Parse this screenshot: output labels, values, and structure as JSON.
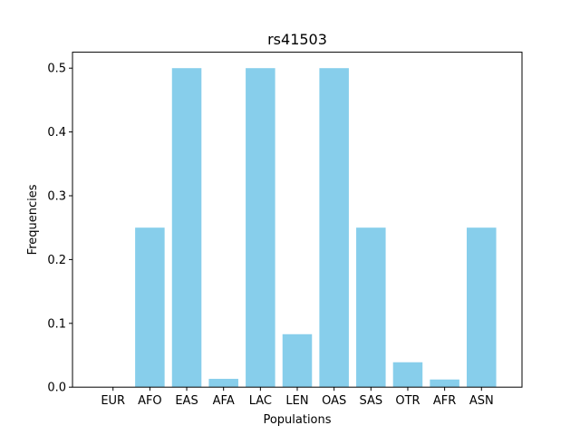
{
  "chart_data": {
    "type": "bar",
    "title": "rs41503",
    "xlabel": "Populations",
    "ylabel": "Frequencies",
    "categories": [
      "EUR",
      "AFO",
      "EAS",
      "AFA",
      "LAC",
      "LEN",
      "OAS",
      "SAS",
      "OTR",
      "AFR",
      "ASN"
    ],
    "values": [
      0.0,
      0.25,
      0.5,
      0.013,
      0.5,
      0.083,
      0.5,
      0.25,
      0.039,
      0.012,
      0.25
    ],
    "ylim": [
      0,
      0.525
    ],
    "yticks": [
      "0.0",
      "0.1",
      "0.2",
      "0.3",
      "0.4",
      "0.5"
    ],
    "ytick_values": [
      0,
      0.1,
      0.2,
      0.3,
      0.4,
      0.5
    ],
    "bar_color": "#87ceeb",
    "grid": false,
    "legend": false
  }
}
